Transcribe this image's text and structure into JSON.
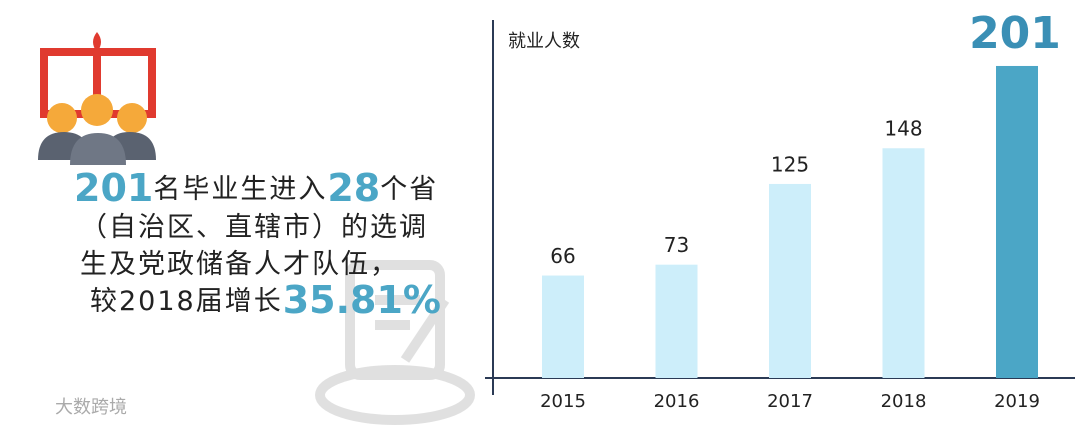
{
  "chart_data": {
    "type": "bar",
    "y_label": "就业人数",
    "categories": [
      "2015",
      "2016",
      "2017",
      "2018",
      "2019"
    ],
    "values": [
      66,
      73,
      125,
      148,
      201
    ],
    "colors": [
      "#cdeefa",
      "#cdeefa",
      "#cdeefa",
      "#cdeefa",
      "#4ba6c6"
    ],
    "ylim": [
      0,
      210
    ],
    "grid": false
  },
  "infographic": {
    "lines": [
      [
        {
          "text": "201",
          "highlight": true
        },
        {
          "text": "名毕业生进入",
          "highlight": false
        },
        {
          "text": "28",
          "highlight": true
        },
        {
          "text": "个省",
          "highlight": false
        }
      ],
      [
        {
          "text": "（自治区、直辖市）的选调",
          "highlight": false
        }
      ],
      [
        {
          "text": "生及党政储备人才队伍，",
          "highlight": false
        }
      ],
      [
        {
          "text": "较2018届增长",
          "highlight": false
        },
        {
          "text": "35.81%",
          "highlight": true
        }
      ]
    ]
  },
  "watermark": "大数跨境"
}
